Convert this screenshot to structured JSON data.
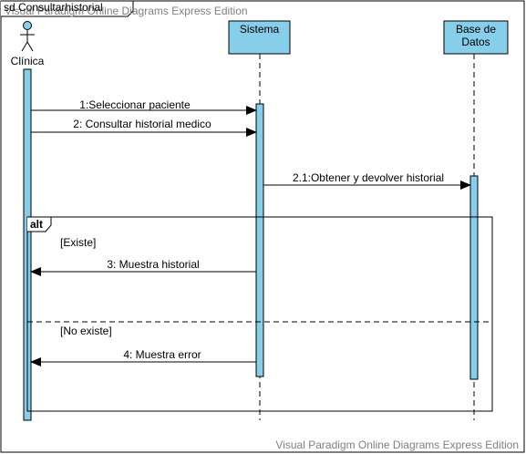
{
  "frame": {
    "label": "sd Consultarhistorial"
  },
  "watermark": {
    "top": "Visual Paradigm Online Diagrams Express Edition",
    "bottom": "Visual Paradigm Online Diagrams Express Edition"
  },
  "actor": {
    "name": "Clínica"
  },
  "lifelines": {
    "sistema": "Sistema",
    "base_line1": "Base de",
    "base_line2": "Datos"
  },
  "messages": {
    "m1": "1:Seleccionar paciente",
    "m2": "2: Consultar historial medico",
    "m21": "2.1:Obtener y devolver historial",
    "m3": "3: Muestra historial",
    "m4": "4: Muestra error"
  },
  "fragment": {
    "operator": "alt",
    "guard1": "[Existe]",
    "guard2": "[No existe]"
  },
  "colors": {
    "lifeline_fill": "#87CEEB",
    "actor_head": "#87CEEB",
    "stroke": "#000000",
    "watermark": "#808080"
  }
}
